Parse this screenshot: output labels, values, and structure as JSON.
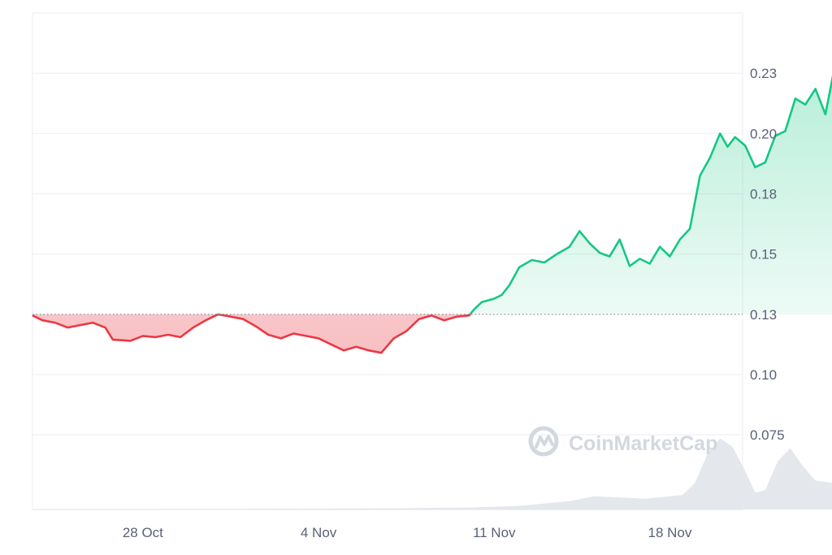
{
  "chart_data": {
    "type": "area",
    "title": "",
    "xlabel": "",
    "ylabel": "",
    "x_ticks": [
      "28 Oct",
      "4 Nov",
      "11 Nov",
      "18 Nov"
    ],
    "y_ticks": [
      "0.075",
      "0.10",
      "0.13",
      "0.15",
      "0.18",
      "0.20",
      "0.23"
    ],
    "y_tick_values": [
      0.075,
      0.1,
      0.125,
      0.15,
      0.175,
      0.2,
      0.225
    ],
    "ylim": [
      0.044,
      0.25
    ],
    "xlim_days_from_first_tick": [
      -4.4,
      23.9
    ],
    "baseline": 0.125,
    "grid": true,
    "legend": "none",
    "colors": {
      "above": "#16c784",
      "below": "#ea3943",
      "grid": "#eceef2",
      "volume": "#e4e7ec"
    },
    "price_series": [
      [
        -4.4,
        0.1245
      ],
      [
        -4.0,
        0.1225
      ],
      [
        -3.5,
        0.1215
      ],
      [
        -3.0,
        0.1195
      ],
      [
        -2.5,
        0.1205
      ],
      [
        -2.0,
        0.1215
      ],
      [
        -1.5,
        0.1195
      ],
      [
        -1.2,
        0.1145
      ],
      [
        -0.5,
        0.114
      ],
      [
        0.0,
        0.116
      ],
      [
        0.5,
        0.1155
      ],
      [
        1.0,
        0.1165
      ],
      [
        1.5,
        0.1155
      ],
      [
        2.0,
        0.1195
      ],
      [
        2.5,
        0.1225
      ],
      [
        3.0,
        0.125
      ],
      [
        3.5,
        0.124
      ],
      [
        4.0,
        0.123
      ],
      [
        4.5,
        0.12
      ],
      [
        5.0,
        0.1165
      ],
      [
        5.5,
        0.115
      ],
      [
        6.0,
        0.117
      ],
      [
        6.5,
        0.116
      ],
      [
        7.0,
        0.115
      ],
      [
        7.5,
        0.1125
      ],
      [
        8.0,
        0.11
      ],
      [
        8.5,
        0.1115
      ],
      [
        9.0,
        0.11
      ],
      [
        9.5,
        0.109
      ],
      [
        10.0,
        0.115
      ],
      [
        10.5,
        0.118
      ],
      [
        11.0,
        0.123
      ],
      [
        11.5,
        0.1245
      ],
      [
        12.0,
        0.1225
      ],
      [
        12.5,
        0.124
      ],
      [
        13.0,
        0.1245
      ],
      [
        13.2,
        0.127
      ],
      [
        13.5,
        0.13
      ],
      [
        14.0,
        0.1315
      ],
      [
        14.3,
        0.133
      ],
      [
        14.6,
        0.137
      ],
      [
        15.0,
        0.1445
      ],
      [
        15.5,
        0.1475
      ],
      [
        16.0,
        0.1465
      ],
      [
        16.5,
        0.15
      ],
      [
        17.0,
        0.153
      ],
      [
        17.4,
        0.1595
      ],
      [
        17.8,
        0.1545
      ],
      [
        18.2,
        0.1505
      ],
      [
        18.6,
        0.149
      ],
      [
        19.0,
        0.156
      ],
      [
        19.4,
        0.145
      ],
      [
        19.8,
        0.148
      ],
      [
        20.2,
        0.146
      ],
      [
        20.6,
        0.153
      ],
      [
        21.0,
        0.149
      ],
      [
        21.4,
        0.156
      ],
      [
        21.8,
        0.1605
      ],
      [
        22.2,
        0.1825
      ],
      [
        22.6,
        0.19
      ],
      [
        23.0,
        0.2
      ],
      [
        23.3,
        0.1945
      ],
      [
        23.6,
        0.1985
      ],
      [
        24.0,
        0.195
      ],
      [
        24.4,
        0.186
      ],
      [
        24.8,
        0.188
      ],
      [
        25.2,
        0.199
      ],
      [
        25.6,
        0.201
      ],
      [
        26.0,
        0.2145
      ],
      [
        26.4,
        0.212
      ],
      [
        26.8,
        0.2185
      ],
      [
        27.2,
        0.208
      ],
      [
        27.5,
        0.224
      ],
      [
        27.8,
        0.233
      ],
      [
        28.0,
        0.2185
      ],
      [
        28.3,
        0.2265
      ],
      [
        28.6,
        0.2135
      ],
      [
        28.8,
        0.2185
      ],
      [
        29.0,
        0.2115
      ]
    ],
    "volume_series": [
      [
        -4.4,
        0.0002
      ],
      [
        0.0,
        0.0002
      ],
      [
        5.0,
        0.0003
      ],
      [
        10.0,
        0.0005
      ],
      [
        13.0,
        0.0008
      ],
      [
        15.0,
        0.0015
      ],
      [
        17.0,
        0.0035
      ],
      [
        18.0,
        0.0055
      ],
      [
        20.0,
        0.0045
      ],
      [
        21.5,
        0.006
      ],
      [
        22.0,
        0.011
      ],
      [
        22.5,
        0.023
      ],
      [
        23.0,
        0.0295
      ],
      [
        23.5,
        0.026
      ],
      [
        24.0,
        0.016
      ],
      [
        24.4,
        0.007
      ],
      [
        24.8,
        0.008
      ],
      [
        25.3,
        0.02
      ],
      [
        25.8,
        0.0255
      ],
      [
        26.3,
        0.018
      ],
      [
        26.8,
        0.012
      ],
      [
        27.5,
        0.011
      ],
      [
        28.2,
        0.008
      ],
      [
        29.0,
        0.01
      ]
    ]
  },
  "watermark": {
    "text": "CoinMarketCap",
    "icon": "coinmarketcap-logo-icon"
  }
}
